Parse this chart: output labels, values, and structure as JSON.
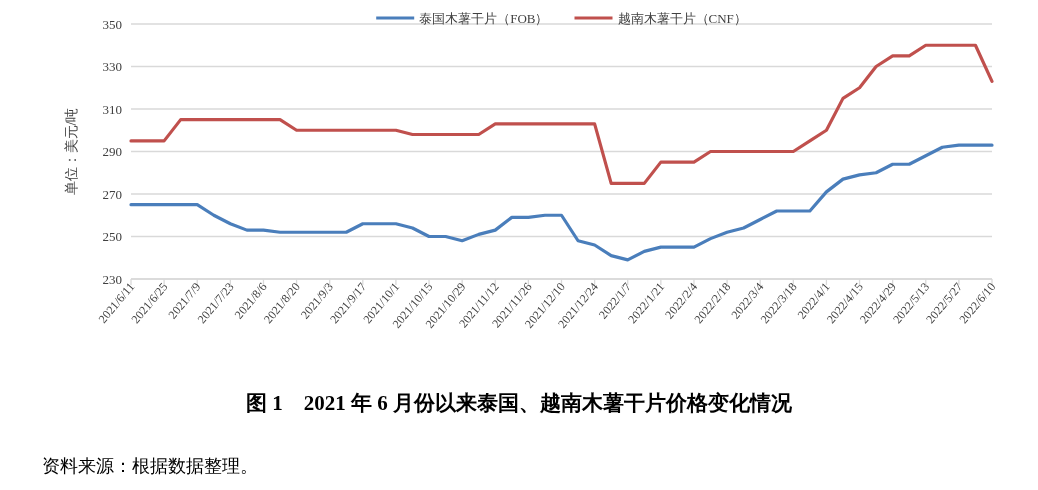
{
  "chart_data": {
    "type": "line",
    "title": "图 1　2021 年 6 月份以来泰国、越南木薯干片价格变化情况",
    "ylabel": "单位：美元/吨",
    "categories": [
      "2021/6/11",
      null,
      "2021/6/25",
      null,
      "2021/7/9",
      null,
      "2021/7/23",
      null,
      "2021/8/6",
      null,
      "2021/8/20",
      null,
      "2021/9/3",
      null,
      "2021/9/17",
      null,
      "2021/10/1",
      null,
      "2021/10/15",
      null,
      "2021/10/29",
      null,
      "2021/11/12",
      null,
      "2021/11/26",
      null,
      "2021/12/10",
      null,
      "2021/12/24",
      null,
      "2022/1/7",
      null,
      "2022/1/21",
      null,
      "2022/2/4",
      null,
      "2022/2/18",
      null,
      "2022/3/4",
      null,
      "2022/3/18",
      null,
      "2022/4/1",
      null,
      "2022/4/15",
      null,
      "2022/4/29",
      null,
      "2022/5/13",
      null,
      "2022/5/27",
      null,
      "2022/6/10"
    ],
    "series": [
      {
        "name": "泰国木薯干片（FOB）",
        "color": "#4a7ebb",
        "values": [
          265,
          265,
          265,
          265,
          265,
          260,
          256,
          253,
          253,
          252,
          252,
          252,
          252,
          252,
          256,
          256,
          256,
          254,
          250,
          250,
          248,
          251,
          253,
          259,
          259,
          260,
          260,
          248,
          246,
          241,
          239,
          243,
          245,
          245,
          245,
          249,
          252,
          254,
          258,
          262,
          262,
          262,
          271,
          277,
          279,
          280,
          284,
          284,
          288,
          292,
          293,
          293,
          293
        ]
      },
      {
        "name": "越南木薯干片（CNF）",
        "color": "#c0504d",
        "values": [
          295,
          295,
          295,
          305,
          305,
          305,
          305,
          305,
          305,
          305,
          300,
          300,
          300,
          300,
          300,
          300,
          300,
          298,
          298,
          298,
          298,
          298,
          303,
          303,
          303,
          303,
          303,
          303,
          303,
          275,
          275,
          275,
          285,
          285,
          285,
          290,
          290,
          290,
          290,
          290,
          290,
          295,
          300,
          315,
          320,
          330,
          335,
          335,
          340,
          340,
          340,
          340,
          323
        ]
      }
    ],
    "ylim": [
      230,
      350
    ],
    "yticks": [
      230,
      250,
      270,
      290,
      310,
      330,
      350
    ],
    "grid": "y",
    "legend": "top",
    "marker": "none",
    "line_style": "solid",
    "annotations": [
      "资料来源：根据数据整理。"
    ]
  }
}
